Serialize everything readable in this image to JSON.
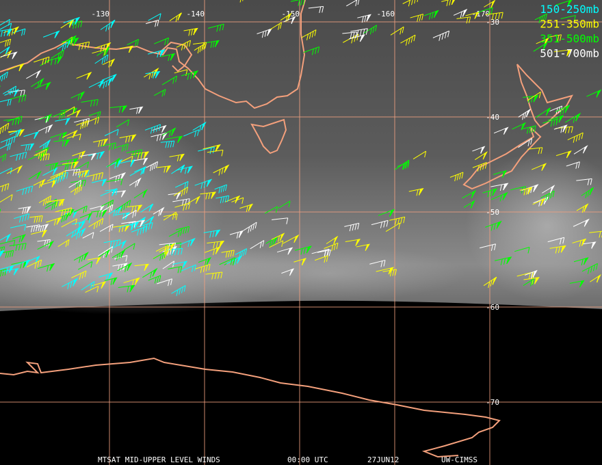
{
  "map": {
    "longitudes": [
      -130,
      -140,
      -150,
      -160,
      -170
    ],
    "latitudes": [
      -30,
      -40,
      -50,
      -60,
      -70
    ],
    "legend": [
      {
        "label": "150-250mb",
        "color": "#00ffff"
      },
      {
        "label": "251-350mb",
        "color": "#ffff00"
      },
      {
        "label": "351-500mb",
        "color": "#00ff00"
      },
      {
        "label": "501-700mb",
        "color": "#ffffff"
      }
    ],
    "footer": [
      "MTSAT MID-UPPER LEVEL WINDS",
      "00:00 UTC",
      "27JUN12",
      "UW-CIMSS"
    ]
  }
}
